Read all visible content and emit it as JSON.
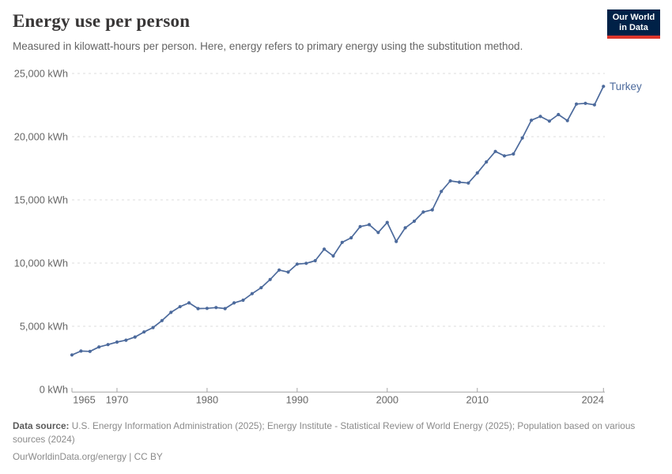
{
  "header": {
    "title": "Energy use per person",
    "subtitle": "Measured in kilowatt-hours per person. Here, energy refers to primary energy using the substitution method."
  },
  "logo": {
    "line1": "Our World",
    "line2": "in Data",
    "bg_color": "#002147",
    "accent_color": "#dc352b"
  },
  "chart_data": {
    "type": "line",
    "title": "Energy use per person",
    "unit": "kWh",
    "grid": "horizontal-dashed",
    "legend_position": "end-of-line-label",
    "xlim": [
      1965,
      2024
    ],
    "ylim": [
      0,
      25000
    ],
    "x_ticks": [
      1965,
      1970,
      1980,
      1990,
      2000,
      2010,
      2024
    ],
    "x_tick_labels": [
      "1965",
      "1970",
      "1980",
      "1990",
      "2000",
      "2010",
      "2024"
    ],
    "y_ticks": [
      0,
      5000,
      10000,
      15000,
      20000,
      25000
    ],
    "y_tick_labels": [
      "0 kWh",
      "5,000 kWh",
      "10,000 kWh",
      "15,000 kWh",
      "20,000 kWh",
      "25,000 kWh"
    ],
    "series": [
      {
        "name": "Turkey",
        "color": "#4c6a9c",
        "x": [
          1965,
          1966,
          1967,
          1968,
          1969,
          1970,
          1971,
          1972,
          1973,
          1974,
          1975,
          1976,
          1977,
          1978,
          1979,
          1980,
          1981,
          1982,
          1983,
          1984,
          1985,
          1986,
          1987,
          1988,
          1989,
          1990,
          1991,
          1992,
          1993,
          1994,
          1995,
          1996,
          1997,
          1998,
          1999,
          2000,
          2001,
          2002,
          2003,
          2004,
          2005,
          2006,
          2007,
          2008,
          2009,
          2010,
          2011,
          2012,
          2013,
          2014,
          2015,
          2016,
          2017,
          2018,
          2019,
          2020,
          2021,
          2022,
          2023,
          2024
        ],
        "values": [
          2730,
          3040,
          3010,
          3360,
          3550,
          3750,
          3900,
          4150,
          4550,
          4900,
          5450,
          6100,
          6550,
          6850,
          6400,
          6420,
          6480,
          6400,
          6850,
          7060,
          7580,
          8050,
          8700,
          9450,
          9290,
          9920,
          9980,
          10190,
          11100,
          10560,
          11640,
          12000,
          12890,
          13040,
          12420,
          13210,
          11710,
          12790,
          13310,
          14040,
          14210,
          15670,
          16500,
          16400,
          16330,
          17130,
          18000,
          18830,
          18480,
          18630,
          19900,
          21300,
          21600,
          21230,
          21750,
          21270,
          22580,
          22640,
          22520,
          23980
        ]
      }
    ],
    "end_label": "Turkey"
  },
  "footer": {
    "source_label": "Data source:",
    "source_text": "U.S. Energy Information Administration (2025); Energy Institute - Statistical Review of World Energy (2025); Population based on various sources (2024)",
    "note": "OurWorldinData.org/energy | CC BY"
  },
  "colors": {
    "title": "#383636",
    "subtitle": "#646464",
    "axis_text": "#666666",
    "gridline": "#dcdcdc",
    "axis_line": "#a5a5a5",
    "series_blue": "#4c6a9c",
    "background": "#ffffff"
  }
}
